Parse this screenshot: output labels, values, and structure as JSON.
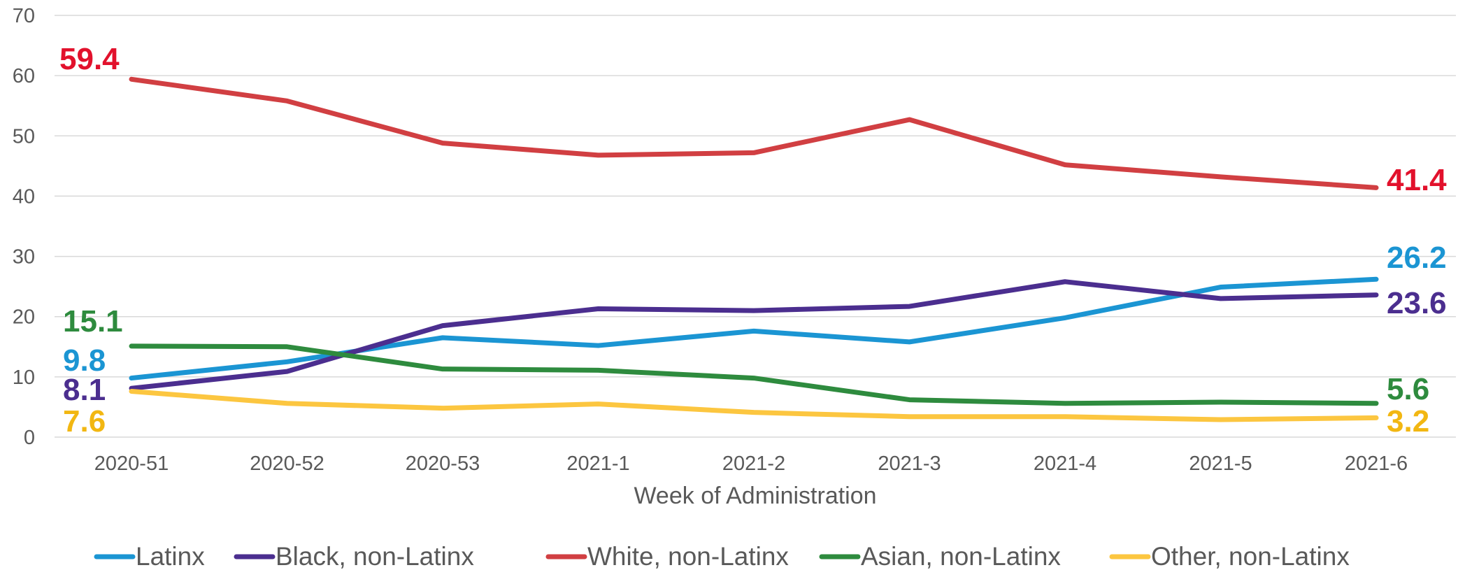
{
  "chart_data": {
    "type": "line",
    "title": "",
    "xlabel": "Week of Administration",
    "ylabel": "",
    "ylim": [
      0,
      70
    ],
    "yticks": [
      0,
      10,
      20,
      30,
      40,
      50,
      60,
      70
    ],
    "grid": true,
    "legend_position": "bottom",
    "categories": [
      "2020-51",
      "2020-52",
      "2020-53",
      "2021-1",
      "2021-2",
      "2021-3",
      "2021-4",
      "2021-5",
      "2021-6"
    ],
    "series": [
      {
        "name": "Latinx",
        "color": "#1b95d3",
        "values": [
          9.8,
          12.5,
          16.5,
          15.2,
          17.6,
          15.8,
          19.8,
          24.9,
          26.2
        ]
      },
      {
        "name": "Black, non-Latinx",
        "color": "#4b2e8f",
        "values": [
          8.1,
          10.9,
          18.5,
          21.3,
          21.0,
          21.7,
          25.8,
          23.0,
          23.6
        ]
      },
      {
        "name": "White, non-Latinx",
        "color": "#d13f42",
        "values": [
          59.4,
          55.8,
          48.8,
          46.8,
          47.2,
          52.7,
          45.2,
          43.2,
          41.4
        ]
      },
      {
        "name": "Asian, non-Latinx",
        "color": "#2e8b3e",
        "values": [
          15.1,
          15.0,
          11.3,
          11.1,
          9.8,
          6.2,
          5.6,
          5.8,
          5.6
        ]
      },
      {
        "name": "Other, non-Latinx",
        "color": "#fcc640",
        "values": [
          7.6,
          5.6,
          4.8,
          5.5,
          4.1,
          3.4,
          3.4,
          2.9,
          3.2
        ]
      }
    ],
    "data_labels": [
      {
        "series": 2,
        "point": 0,
        "text": "59.4",
        "color": "#e2112c"
      },
      {
        "series": 2,
        "point": 8,
        "text": "41.4",
        "color": "#e2112c"
      },
      {
        "series": 3,
        "point": 0,
        "text": "15.1",
        "color": "#2e8b3e"
      },
      {
        "series": 0,
        "point": 0,
        "text": "9.8",
        "color": "#1b95d3"
      },
      {
        "series": 1,
        "point": 0,
        "text": "8.1",
        "color": "#4b2e8f"
      },
      {
        "series": 4,
        "point": 0,
        "text": "7.6",
        "color": "#f2b712"
      },
      {
        "series": 0,
        "point": 8,
        "text": "26.2",
        "color": "#1b95d3"
      },
      {
        "series": 1,
        "point": 8,
        "text": "23.6",
        "color": "#4b2e8f"
      },
      {
        "series": 3,
        "point": 8,
        "text": "5.6",
        "color": "#2e8b3e"
      },
      {
        "series": 4,
        "point": 8,
        "text": "3.2",
        "color": "#f2b712"
      }
    ]
  }
}
